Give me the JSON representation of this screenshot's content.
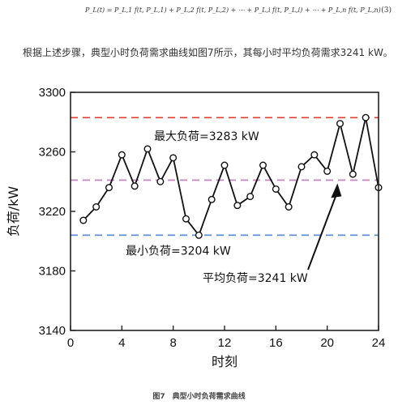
{
  "equation": {
    "text": "P_L(t) = P_L,1 f(t, P_L,1) + P_L,2 f(t, P_L,2) + ⋯ + P_L,i f(t, P_L,i) + ⋯ + P_L,n f(t, P_L,n)",
    "number": "(3)"
  },
  "paragraph": "根据上述步骤，典型小时负荷需求曲线如图7所示，其每小时平均负荷需求3241 kW。",
  "caption": "图7　典型小时负荷需求曲线",
  "chart_data": {
    "type": "line",
    "title": "",
    "xlabel": "时刻",
    "ylabel": "负荷/kW",
    "xlim": [
      0,
      24
    ],
    "ylim": [
      3140,
      3300
    ],
    "x_ticks": [
      0,
      4,
      8,
      12,
      16,
      20,
      24
    ],
    "y_ticks": [
      3140,
      3180,
      3220,
      3260,
      3300
    ],
    "x": [
      1,
      2,
      3,
      4,
      5,
      6,
      7,
      8,
      9,
      10,
      11,
      12,
      13,
      14,
      15,
      16,
      17,
      18,
      19,
      20,
      21,
      22,
      23,
      24
    ],
    "values": [
      3214,
      3223,
      3236,
      3258,
      3237,
      3262,
      3240,
      3256,
      3215,
      3204,
      3228,
      3251,
      3224,
      3230,
      3251,
      3235,
      3223,
      3250,
      3258,
      3247,
      3279,
      3245,
      3283,
      3236
    ],
    "series_color": "#111111",
    "reference_lines": [
      {
        "value": 3283,
        "label": "最大负荷=3283 kW",
        "color": "#e04a3a"
      },
      {
        "value": 3241,
        "label": "平均负荷=3241 kW",
        "color": "#c78bbf"
      },
      {
        "value": 3204,
        "label": "最小负荷=3204 kW",
        "color": "#5b8fd1"
      }
    ],
    "grid": false,
    "legend": "none"
  }
}
